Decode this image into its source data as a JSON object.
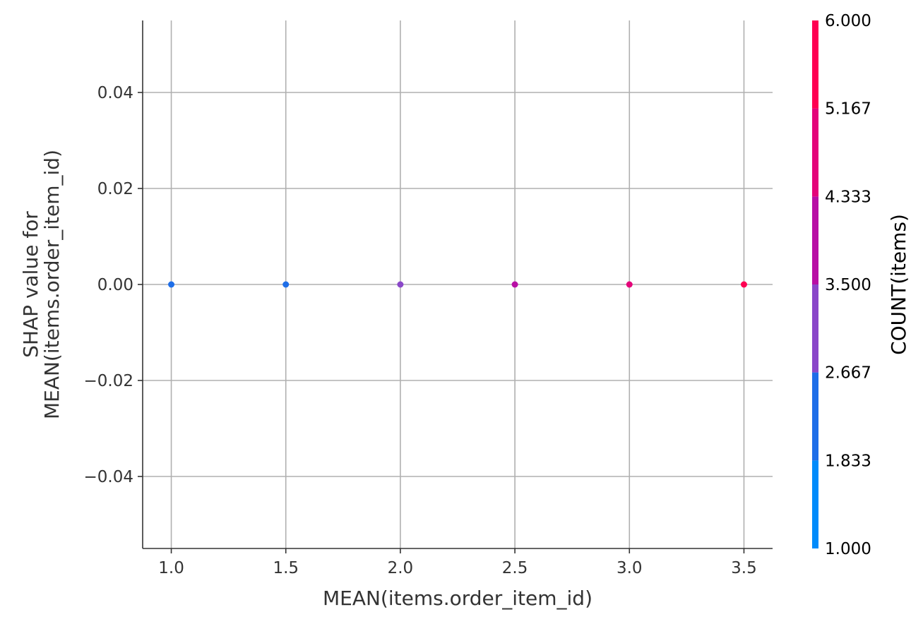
{
  "chart_data": {
    "type": "scatter",
    "xlabel": "MEAN(items.order_item_id)",
    "ylabel_line1": "SHAP value for",
    "ylabel_line2": "MEAN(items.order_item_id)",
    "xlim": [
      0.875,
      3.625
    ],
    "ylim": [
      -0.055,
      0.055
    ],
    "x_ticks": [
      1.0,
      1.5,
      2.0,
      2.5,
      3.0,
      3.5
    ],
    "x_tick_labels": [
      "1.0",
      "1.5",
      "2.0",
      "2.5",
      "3.0",
      "3.5"
    ],
    "y_ticks": [
      0.04,
      0.02,
      0.0,
      -0.02,
      -0.04
    ],
    "y_tick_labels": [
      "0.04",
      "0.02",
      "0.00",
      "−0.02",
      "−0.04"
    ],
    "grid": true,
    "points": [
      {
        "x": 1.0,
        "y": 0.0,
        "count": 2
      },
      {
        "x": 1.5,
        "y": 0.0,
        "count": 2
      },
      {
        "x": 2.0,
        "y": 0.0,
        "count": 3
      },
      {
        "x": 2.5,
        "y": 0.0,
        "count": 4
      },
      {
        "x": 3.0,
        "y": 0.0,
        "count": 5
      },
      {
        "x": 3.5,
        "y": 0.0,
        "count": 6
      }
    ],
    "colorbar": {
      "label": "COUNT(items)",
      "range": [
        1.0,
        6.0
      ],
      "ticks": [
        1.0,
        1.833,
        2.667,
        3.5,
        4.333,
        5.167,
        6.0
      ],
      "tick_labels": [
        "1.000",
        "1.833",
        "2.667",
        "3.500",
        "4.333",
        "5.167",
        "6.000"
      ],
      "bands": [
        {
          "from": 1.0,
          "to": 1.833,
          "color": "#008bfb"
        },
        {
          "from": 1.833,
          "to": 2.667,
          "color": "#1e6ee8"
        },
        {
          "from": 2.667,
          "to": 3.5,
          "color": "#8a47c9"
        },
        {
          "from": 3.5,
          "to": 4.333,
          "color": "#b80fa5"
        },
        {
          "from": 4.333,
          "to": 5.167,
          "color": "#e4047a"
        },
        {
          "from": 5.167,
          "to": 6.0,
          "color": "#ff0052"
        }
      ]
    }
  }
}
